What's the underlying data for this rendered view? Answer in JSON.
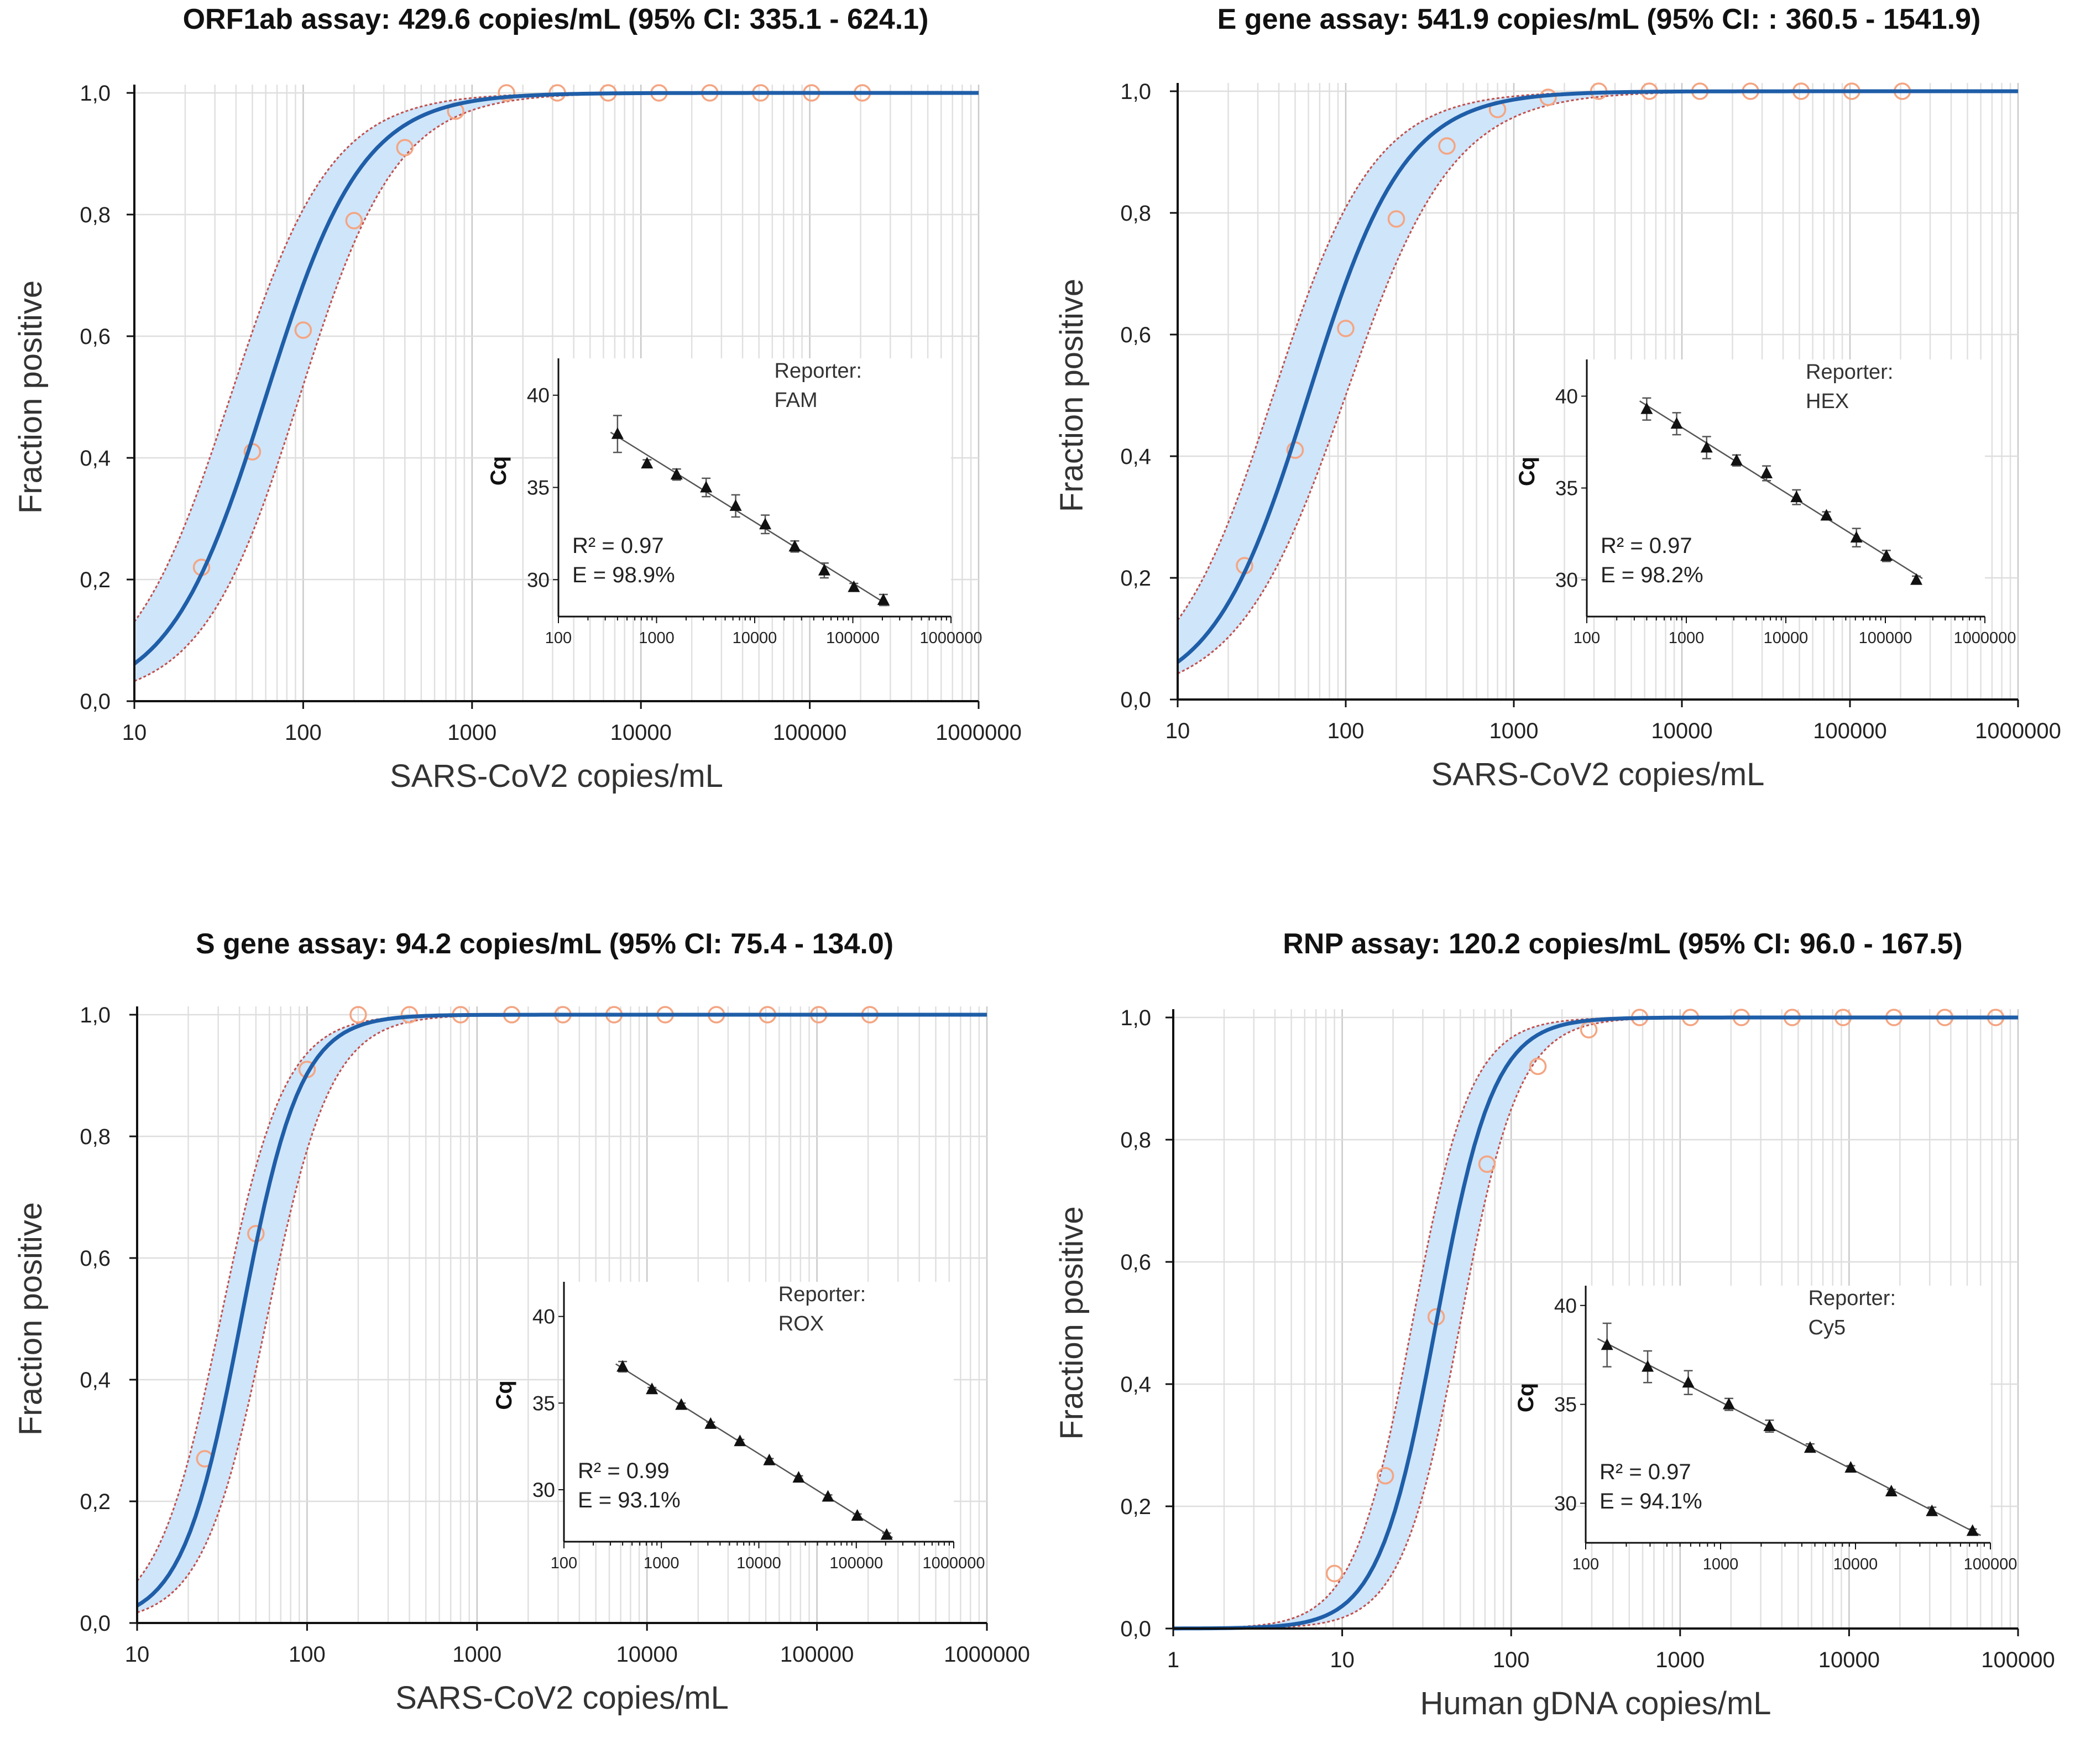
{
  "chart_data": [
    {
      "type": "line",
      "title": "ORF1ab assay: 429.6 copies/mL (95% CI: 335.1 - 624.1)",
      "xlabel": "SARS-CoV2 copies/mL",
      "ylabel": "Fraction positive",
      "xscale": "log",
      "xlim": [
        10,
        1000000
      ],
      "ylim": [
        0,
        1
      ],
      "xticks": [
        "10",
        "100",
        "1000",
        "10000",
        "100000",
        "1000000"
      ],
      "yticks": [
        "0,0",
        "0,2",
        "0,4",
        "0,6",
        "0,8",
        "1,0"
      ],
      "grid": true,
      "curve_color": "#1f5ea8",
      "band_color": "#cfe5fa",
      "bound_color": "#c0504d",
      "point_color": "#f4a582",
      "curve": {
        "midpoint": 60,
        "slope": 1.52
      },
      "band": {
        "lower_midpoint": 95,
        "lower_slope": 1.5,
        "upper_midpoint": 37,
        "upper_slope": 1.45
      },
      "observed": {
        "x": [
          25,
          50,
          100,
          200,
          400,
          800,
          1600,
          3200,
          6400,
          12800,
          25600,
          51200,
          102400,
          204800
        ],
        "y": [
          0.22,
          0.41,
          0.61,
          0.79,
          0.91,
          0.97,
          1.0,
          1.0,
          1.0,
          1.0,
          1.0,
          1.0,
          1.0,
          1.0
        ]
      },
      "inset": {
        "ylabel": "Cq",
        "xscale": "log",
        "xlim": [
          100,
          1000000
        ],
        "ylim": [
          28,
          42
        ],
        "xticks": [
          "100",
          "1000",
          "10000",
          "100000",
          "1000000"
        ],
        "yticks": [
          "30",
          "35",
          "40"
        ],
        "reporter_label": "Reporter:",
        "reporter": "FAM",
        "r2": "R² = 0.97",
        "efficiency": "E = 98.9%",
        "x": [
          400,
          800,
          1600,
          3200,
          6400,
          12800,
          25600,
          51200,
          102400,
          204800
        ],
        "y": [
          37.9,
          36.3,
          35.7,
          35.0,
          34.0,
          33.0,
          31.8,
          30.5,
          29.6,
          28.9
        ],
        "err": [
          1.0,
          0.2,
          0.3,
          0.5,
          0.6,
          0.5,
          0.3,
          0.4,
          0.2,
          0.3
        ]
      }
    },
    {
      "type": "line",
      "title": "E gene assay: 541.9 copies/mL (95% CI: : 360.5 - 1541.9)",
      "xlabel": "SARS-CoV2 copies/mL",
      "ylabel": "Fraction positive",
      "xscale": "log",
      "xlim": [
        10,
        1000000
      ],
      "ylim": [
        0,
        1
      ],
      "xticks": [
        "10",
        "100",
        "1000",
        "10000",
        "100000",
        "1000000"
      ],
      "yticks": [
        "0,0",
        "0,2",
        "0,4",
        "0,6",
        "0,8",
        "1,0"
      ],
      "grid": true,
      "curve_color": "#1f5ea8",
      "band_color": "#cfe5fa",
      "bound_color": "#c0504d",
      "point_color": "#f4a582",
      "curve": {
        "midpoint": 60,
        "slope": 1.52
      },
      "band": {
        "lower_midpoint": 100,
        "lower_slope": 1.35,
        "upper_midpoint": 37,
        "upper_slope": 1.45
      },
      "observed": {
        "x": [
          25,
          50,
          100,
          200,
          400,
          800,
          1600,
          3200,
          6400,
          12800,
          25600,
          51200,
          102400,
          204800
        ],
        "y": [
          0.22,
          0.41,
          0.61,
          0.79,
          0.91,
          0.97,
          0.99,
          1.0,
          1.0,
          1.0,
          1.0,
          1.0,
          1.0,
          1.0
        ]
      },
      "inset": {
        "ylabel": "Cq",
        "xscale": "log",
        "xlim": [
          100,
          1000000
        ],
        "ylim": [
          28,
          42
        ],
        "xticks": [
          "100",
          "1000",
          "10000",
          "100000",
          "1000000"
        ],
        "yticks": [
          "30",
          "35",
          "40"
        ],
        "reporter_label": "Reporter:",
        "reporter": "HEX",
        "r2": "R² = 0.97",
        "efficiency": "E = 98.2%",
        "x": [
          400,
          800,
          1600,
          3200,
          6400,
          12800,
          25600,
          51200,
          102400,
          204800
        ],
        "y": [
          39.3,
          38.5,
          37.2,
          36.5,
          35.8,
          34.5,
          33.5,
          32.3,
          31.3,
          30.0
        ],
        "err": [
          0.6,
          0.6,
          0.6,
          0.3,
          0.4,
          0.4,
          0.2,
          0.5,
          0.3,
          0.2
        ]
      }
    },
    {
      "type": "line",
      "title": "S gene assay: 94.2 copies/mL (95% CI: 75.4 - 134.0)",
      "xlabel": "SARS-CoV2 copies/mL",
      "ylabel": "Fraction positive",
      "xscale": "log",
      "xlim": [
        10,
        1000000
      ],
      "ylim": [
        0,
        1
      ],
      "xticks": [
        "10",
        "100",
        "1000",
        "10000",
        "100000",
        "1000000"
      ],
      "yticks": [
        "0,0",
        "0,2",
        "0,4",
        "0,6",
        "0,8",
        "1,0"
      ],
      "grid": true,
      "curve_color": "#1f5ea8",
      "band_color": "#cfe5fa",
      "bound_color": "#c0504d",
      "point_color": "#f4a582",
      "curve": {
        "midpoint": 41,
        "slope": 2.5
      },
      "band": {
        "lower_midpoint": 58,
        "lower_slope": 2.3,
        "upper_midpoint": 31,
        "upper_slope": 2.3
      },
      "observed": {
        "x": [
          25,
          50,
          100,
          200,
          400,
          800,
          1600,
          3200,
          6400,
          12800,
          25600,
          51200,
          102400,
          204800
        ],
        "y": [
          0.27,
          0.64,
          0.91,
          1.0,
          1.0,
          1.0,
          1.0,
          1.0,
          1.0,
          1.0,
          1.0,
          1.0,
          1.0,
          1.0
        ]
      },
      "inset": {
        "ylabel": "Cq",
        "xscale": "log",
        "xlim": [
          100,
          1000000
        ],
        "ylim": [
          27,
          42
        ],
        "xticks": [
          "100",
          "1000",
          "10000",
          "100000",
          "1000000"
        ],
        "yticks": [
          "30",
          "35",
          "40"
        ],
        "reporter_label": "Reporter:",
        "reporter": "ROX",
        "r2": "R² = 0.99",
        "efficiency": "E = 93.1%",
        "x": [
          400,
          800,
          1600,
          3200,
          6400,
          12800,
          25600,
          51200,
          102400,
          204800
        ],
        "y": [
          37.1,
          35.8,
          34.9,
          33.8,
          32.8,
          31.7,
          30.7,
          29.6,
          28.5,
          27.4
        ],
        "err": [
          0.3,
          0.1,
          0.1,
          0.1,
          0.1,
          0.1,
          0.1,
          0.1,
          0.1,
          0.1
        ]
      }
    },
    {
      "type": "line",
      "title": "RNP assay: 120.2 copies/mL (95% CI: 96.0 - 167.5)",
      "xlabel": "Human gDNA copies/mL",
      "ylabel": "Fraction positive",
      "xscale": "log",
      "xlim": [
        1,
        100000
      ],
      "ylim": [
        0,
        1
      ],
      "xticks": [
        "1",
        "10",
        "100",
        "1000",
        "10000",
        "100000"
      ],
      "yticks": [
        "0,0",
        "0,2",
        "0,4",
        "0,6",
        "0,8",
        "1,0"
      ],
      "grid": true,
      "curve_color": "#1f5ea8",
      "band_color": "#cfe5fa",
      "bound_color": "#c0504d",
      "point_color": "#f4a582",
      "curve": {
        "midpoint": 36,
        "slope": 2.55
      },
      "band": {
        "lower_midpoint": 50,
        "lower_slope": 2.5,
        "upper_midpoint": 26,
        "upper_slope": 2.5
      },
      "observed": {
        "x": [
          9,
          18,
          36,
          72,
          144,
          288,
          576,
          1152,
          2304,
          4608,
          9216,
          18432,
          36864,
          73728
        ],
        "y": [
          0.09,
          0.25,
          0.51,
          0.76,
          0.92,
          0.98,
          1.0,
          1.0,
          1.0,
          1.0,
          1.0,
          1.0,
          1.0,
          1.0
        ]
      },
      "inset": {
        "ylabel": "Cq",
        "xscale": "log",
        "xlim": [
          100,
          100000
        ],
        "ylim": [
          28,
          41
        ],
        "xticks": [
          "100",
          "1000",
          "10000",
          "100000"
        ],
        "yticks": [
          "30",
          "35",
          "40"
        ],
        "reporter_label": "Reporter:",
        "reporter": "Cy5",
        "r2": "R² = 0.97",
        "efficiency": "E = 94.1%",
        "x": [
          144,
          288,
          576,
          1152,
          2304,
          4608,
          9216,
          18432,
          36864,
          73728
        ],
        "y": [
          38.0,
          36.9,
          36.1,
          35.0,
          33.9,
          32.8,
          31.8,
          30.6,
          29.6,
          28.6
        ],
        "err": [
          1.1,
          0.8,
          0.6,
          0.3,
          0.3,
          0.2,
          0.1,
          0.1,
          0.2,
          0.1
        ]
      }
    }
  ]
}
